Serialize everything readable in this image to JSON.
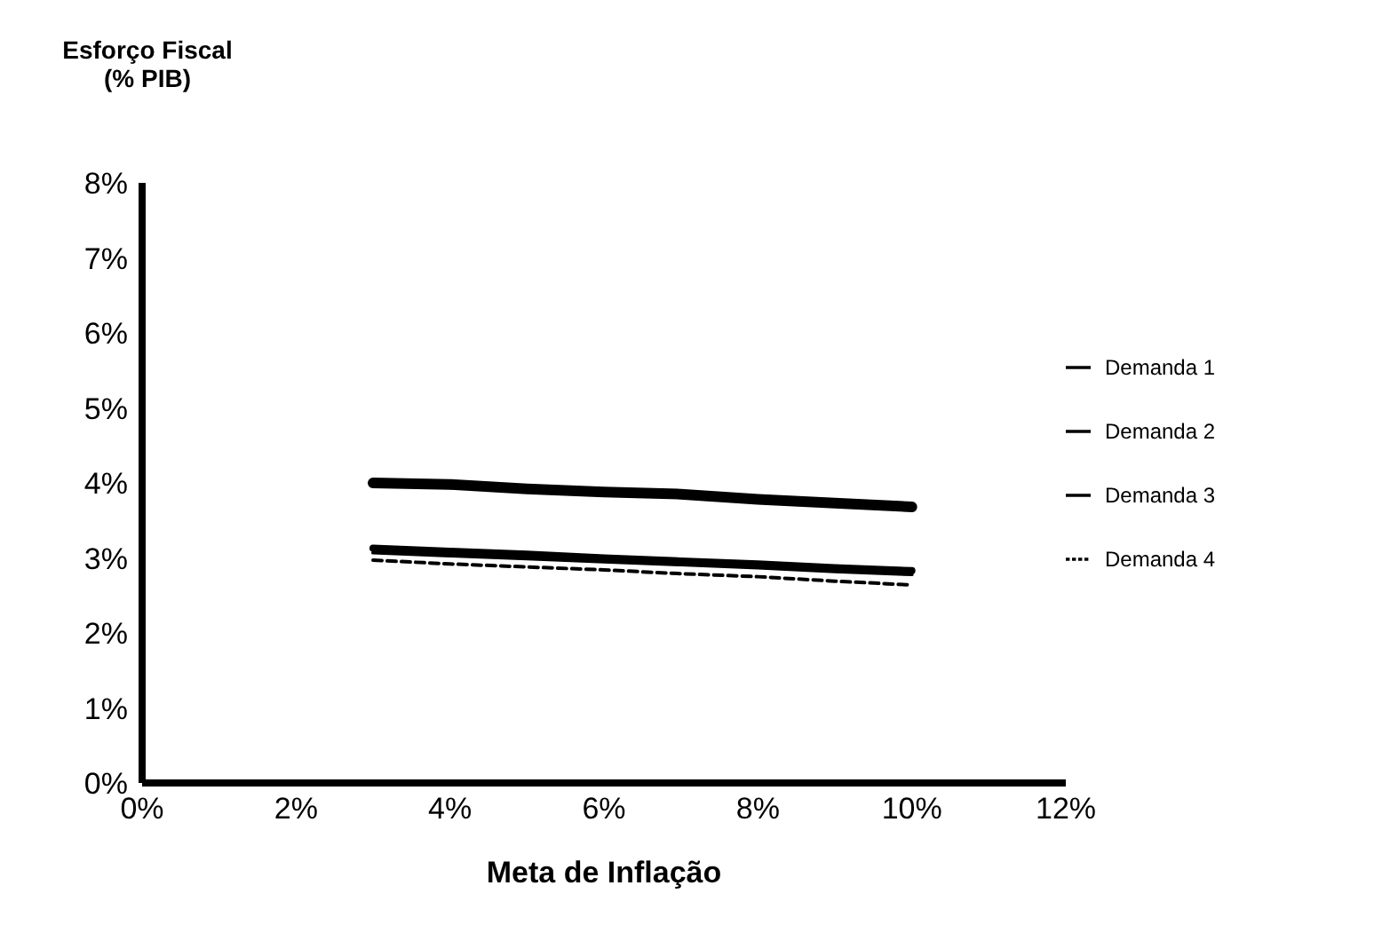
{
  "chart_data": {
    "type": "line",
    "ylabel": "Esforço Fiscal\n(% PIB)",
    "xlabel": "Meta de Inflação",
    "x": [
      3,
      4,
      5,
      6,
      7,
      8,
      9,
      10
    ],
    "series": [
      {
        "name": "Demanda 1",
        "color": "#000000",
        "values": [
          4.0,
          3.98,
          3.92,
          3.88,
          3.85,
          3.78,
          3.73,
          3.68
        ]
      },
      {
        "name": "Demanda 2",
        "color": "#000000",
        "values": [
          3.13,
          3.09,
          3.05,
          3.0,
          2.96,
          2.92,
          2.87,
          2.83
        ]
      },
      {
        "name": "Demanda 3",
        "color": "#000000",
        "values": [
          3.07,
          3.03,
          2.99,
          2.95,
          2.91,
          2.87,
          2.82,
          2.78
        ]
      },
      {
        "name": "Demanda 4",
        "color": "#000000",
        "values": [
          2.97,
          2.92,
          2.88,
          2.84,
          2.79,
          2.75,
          2.69,
          2.64
        ],
        "line_style": "dashed"
      }
    ],
    "xlim": [
      0,
      12
    ],
    "xticks": [
      {
        "value": 0,
        "label": "0%"
      },
      {
        "value": 2,
        "label": "2%"
      },
      {
        "value": 4,
        "label": "4%"
      },
      {
        "value": 6,
        "label": "6%"
      },
      {
        "value": 8,
        "label": "8%"
      },
      {
        "value": 10,
        "label": "10%"
      },
      {
        "value": 12,
        "label": "12%"
      }
    ],
    "ylim": [
      0,
      8
    ],
    "yticks": [
      {
        "value": 0,
        "label": "0%"
      },
      {
        "value": 1,
        "label": "1%"
      },
      {
        "value": 2,
        "label": "2%"
      },
      {
        "value": 3,
        "label": "3%"
      },
      {
        "value": 4,
        "label": "4%"
      },
      {
        "value": 5,
        "label": "5%"
      },
      {
        "value": 6,
        "label": "6%"
      },
      {
        "value": 7,
        "label": "7%"
      },
      {
        "value": 8,
        "label": "8%"
      }
    ],
    "grid": false,
    "legend": "right",
    "marker": "none"
  }
}
